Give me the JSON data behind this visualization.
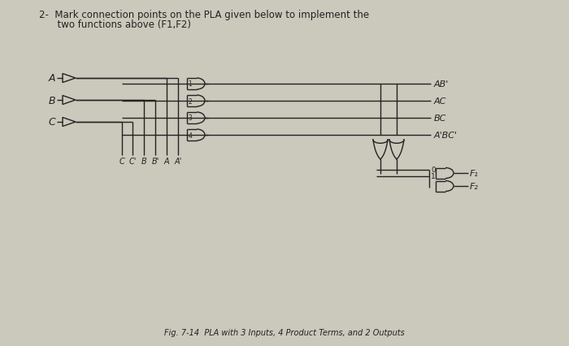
{
  "bg_color": "#cbc8bc",
  "line_color": "#222222",
  "title_line1": "2-  Mark connection points on the PLA given below to implement the",
  "title_line2": "      two functions above (F1,F2)",
  "caption": "Fig. 7-14  PLA with 3 Inputs, 4 Product Terms, and 2 Outputs",
  "inputs": [
    "A",
    "B",
    "C"
  ],
  "col_labels": [
    "C",
    "C'",
    "B",
    "B'",
    "A",
    "A'"
  ],
  "product_terms": [
    "AB'",
    "AC",
    "BC",
    "A'BC'"
  ],
  "gate_labels": [
    "1",
    "2",
    "3",
    "4"
  ],
  "output_labels": [
    "F₁",
    "F₂"
  ],
  "or_labels": [
    "0",
    "1"
  ],
  "watermark_color": "#b8b4a8"
}
